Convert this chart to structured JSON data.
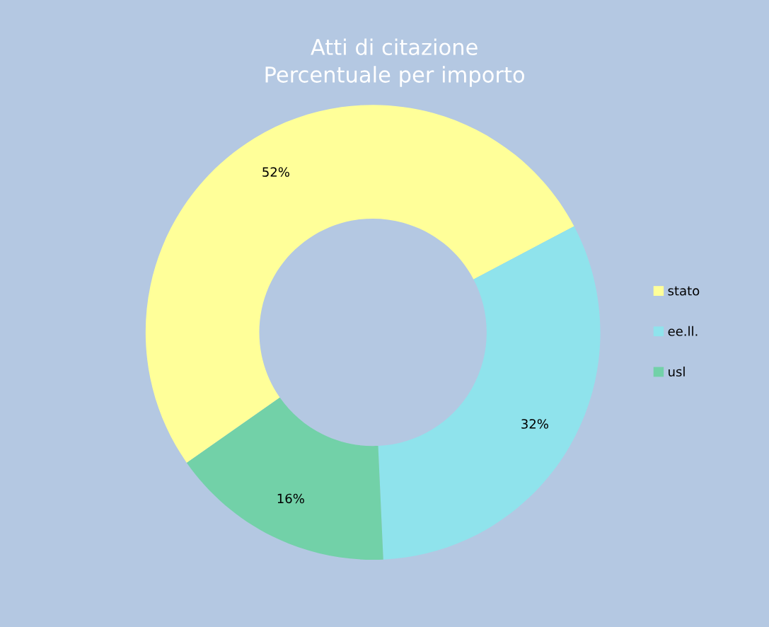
{
  "chart_data": {
    "type": "donut",
    "title": "Atti di citazione\nPercentuale per importo",
    "categories": [
      "stato",
      "ee.ll.",
      "usl"
    ],
    "values": [
      52,
      32,
      16
    ],
    "colors": [
      "#ffff99",
      "#8fe3ec",
      "#72d1a8"
    ],
    "value_labels": [
      "52%",
      "32%",
      "16%"
    ],
    "legend": "right"
  }
}
